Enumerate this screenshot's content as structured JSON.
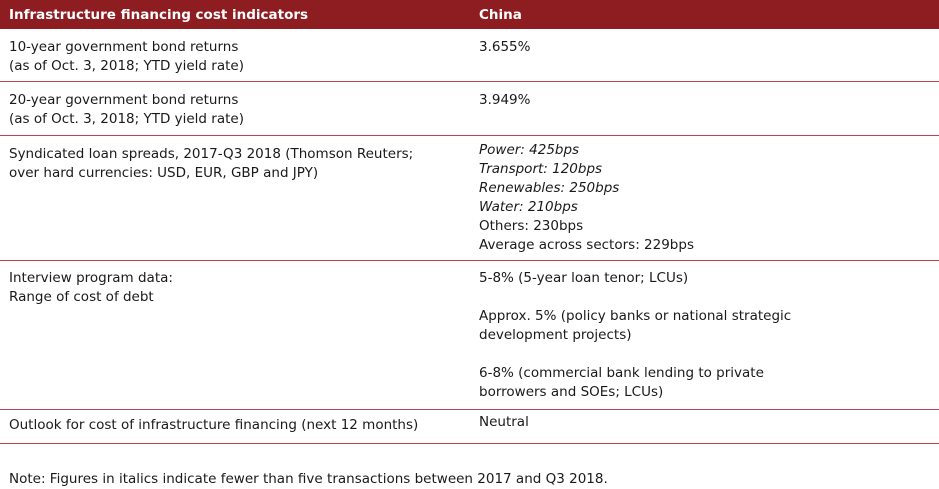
{
  "header": {
    "col1": "Infrastructure financing cost indicators",
    "col2": "China"
  },
  "rows": [
    {
      "label": [
        "10-year government bond returns",
        "(as of Oct. 3, 2018; YTD yield rate)"
      ],
      "value": [
        "3.655%"
      ]
    },
    {
      "label": [
        "20-year government bond returns",
        "(as of Oct. 3, 2018; YTD yield rate)"
      ],
      "value": [
        "3.949%"
      ]
    },
    {
      "label": [
        "Syndicated loan spreads, 2017-Q3 2018 (Thomson Reuters;",
        "over hard currencies: USD, EUR, GBP and JPY)"
      ],
      "value": [
        "Power: 425bps",
        "Transport: 120bps",
        "Renewables: 250bps",
        "Water: 210bps",
        "Others: 230bps",
        "Average across sectors: 229bps"
      ]
    },
    {
      "label": [
        "Interview program data:",
        "Range of cost of debt"
      ],
      "value": [
        "5-8% (5-year loan tenor; LCUs)",
        "Approx. 5% (policy banks or national strategic",
        "development projects)",
        "6-8% (commercial bank lending to private",
        "borrowers and SOEs; LCUs)"
      ]
    },
    {
      "label": [
        "Outlook for cost of infrastructure financing (next 12 months)"
      ],
      "value": [
        "Neutral"
      ]
    }
  ],
  "note": "Note: Figures in italics indicate fewer than five transactions between 2017 and Q3 2018."
}
